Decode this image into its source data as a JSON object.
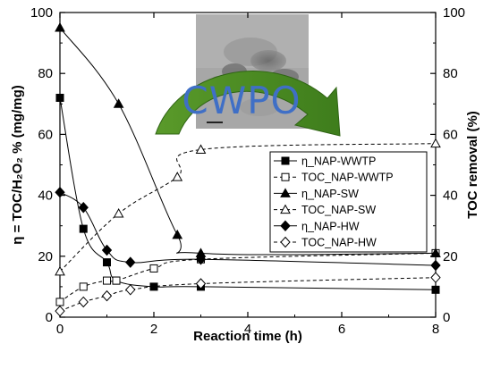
{
  "chart_data": {
    "type": "line",
    "xlabel": "Reaction time (h)",
    "ylabel_left": "η = TOC/H₂O₂ % (mg/mg)",
    "ylabel_right": "TOC removal (%)",
    "xlim": [
      0,
      8
    ],
    "ylim": [
      0,
      100
    ],
    "ylim_right": [
      0,
      100
    ],
    "x_ticks": [
      "0",
      "2",
      "4",
      "6",
      "8"
    ],
    "y_ticks": [
      "0",
      "20",
      "40",
      "60",
      "80",
      "100"
    ],
    "y_ticks_right": [
      "0",
      "20",
      "40",
      "60",
      "80",
      "100"
    ],
    "grid": false,
    "legend_position": "right",
    "inset_label": "CWPO",
    "series": [
      {
        "name": "η_NAP-WWTP",
        "marker": "square-filled",
        "line": "solid",
        "x": [
          0,
          0.5,
          1,
          1.2,
          2,
          3,
          8
        ],
        "y": [
          72,
          29,
          18,
          12,
          10,
          10,
          9
        ]
      },
      {
        "name": "TOC_NAP-WWTP",
        "marker": "square-open",
        "line": "dashed",
        "x": [
          0,
          0.5,
          1,
          1.2,
          2,
          3,
          8
        ],
        "y": [
          5,
          10,
          12,
          12,
          16,
          19,
          21
        ]
      },
      {
        "name": "η_NAP-SW",
        "marker": "triangle-filled",
        "line": "solid",
        "x": [
          0,
          1.25,
          2.5,
          3,
          8
        ],
        "y": [
          95,
          70,
          27,
          21,
          21
        ]
      },
      {
        "name": "TOC_NAP-SW",
        "marker": "triangle-open",
        "line": "dashed",
        "x": [
          0,
          1.25,
          2.5,
          3,
          8
        ],
        "y": [
          15,
          34,
          46,
          55,
          57
        ]
      },
      {
        "name": "η_NAP-HW",
        "marker": "diamond-filled",
        "line": "solid",
        "x": [
          0,
          0.5,
          1,
          1.5,
          3,
          8
        ],
        "y": [
          41,
          36,
          22,
          18,
          19,
          17
        ]
      },
      {
        "name": "TOC_NAP-HW",
        "marker": "diamond-open",
        "line": "dashed",
        "x": [
          0,
          0.5,
          1,
          1.5,
          3,
          8
        ],
        "y": [
          2,
          5,
          7,
          9,
          11,
          13
        ]
      }
    ]
  }
}
